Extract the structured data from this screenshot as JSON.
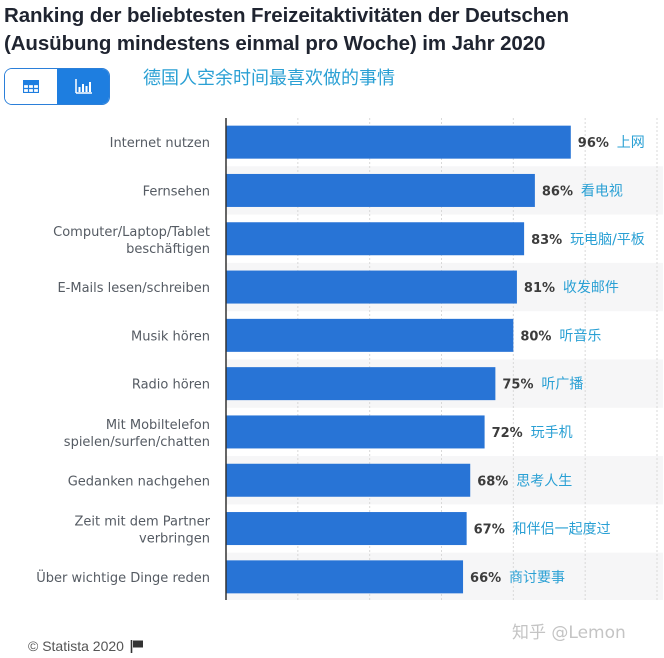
{
  "header": {
    "title_line1": "Ranking der beliebtesten Freizeitaktivitäten der Deutschen",
    "title_line2": "(Ausübung mindestens einmal pro Woche) im Jahr 2020",
    "subtitle_cn": "德国人空余时间最喜欢做的事情"
  },
  "toggle": {
    "table_icon": "table-icon",
    "chart_icon": "bar-chart-icon",
    "active": "chart",
    "active_color": "#1e7ee0"
  },
  "chart_data": {
    "type": "bar",
    "orientation": "horizontal",
    "title": "Ranking der beliebtesten Freizeitaktivitäten der Deutschen (Ausübung mindestens einmal pro Woche) im Jahr 2020",
    "categories": [
      [
        "Internet nutzen"
      ],
      [
        "Fernsehen"
      ],
      [
        "Computer/Laptop/Tablet",
        "beschäftigen"
      ],
      [
        "E-Mails lesen/schreiben"
      ],
      [
        "Musik hören"
      ],
      [
        "Radio hören"
      ],
      [
        "Mit Mobiltelefon",
        "spielen/surfen/chatten"
      ],
      [
        "Gedanken nachgehen"
      ],
      [
        "Zeit mit dem Partner",
        "verbringen"
      ],
      [
        "Über wichtige Dinge reden"
      ]
    ],
    "values": [
      96,
      86,
      83,
      81,
      80,
      75,
      72,
      68,
      67,
      66
    ],
    "value_labels": [
      "96%",
      "86%",
      "83%",
      "81%",
      "80%",
      "75%",
      "72%",
      "68%",
      "67%",
      "66%"
    ],
    "annotations_cn": [
      "上网",
      "看电视",
      "玩电脑/平板",
      "收发邮件",
      "听音乐",
      "听广播",
      "玩手机",
      "思考人生",
      "和伴侣一起度过",
      "商讨要事"
    ],
    "unit": "%",
    "xlabel": "",
    "ylabel": "",
    "xlim": [
      0,
      120
    ],
    "gridlines": [
      20,
      40,
      60,
      80,
      100,
      120
    ],
    "grid": true,
    "legend": "none",
    "bar_color": "#2874d6"
  },
  "footer": {
    "copyright": "© Statista 2020",
    "flag_icon": "flag-icon",
    "watermark": "知乎 @Lemon"
  }
}
